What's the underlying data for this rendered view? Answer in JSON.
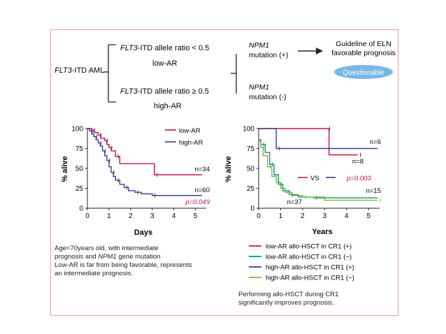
{
  "diagram": {
    "root": {
      "italic": "FLT3",
      "rest": "-ITD AML"
    },
    "branch_low": {
      "italic": "FLT3",
      "rest": "-ITD allele ratio < 0.5",
      "sub": "low-AR"
    },
    "branch_high": {
      "italic": "FLT3",
      "rest": "-ITD allele ratio ≥ 0.5",
      "sub": "high-AR"
    },
    "npm_pos": {
      "italic": "NPM1",
      "sub": "mutation (+)"
    },
    "npm_neg": {
      "italic": "NPM1",
      "sub": "mutation (-)"
    },
    "guideline": [
      "Guideline of ELN",
      "favorable prognosis"
    ],
    "badge": "Questionable"
  },
  "chart_data": [
    {
      "type": "line",
      "xlabel": "Days",
      "ylabel": "% alive",
      "xlim": [
        0,
        5.5
      ],
      "ylim": [
        0,
        100
      ],
      "xticks": [
        0,
        1,
        2,
        3,
        4,
        5
      ],
      "yticks": [
        0,
        25,
        50,
        75,
        100
      ],
      "legend": "top-right",
      "series": [
        {
          "name": "low-AR",
          "color": "#c0144a",
          "x": [
            0,
            0.2,
            0.3,
            0.5,
            0.6,
            0.8,
            0.9,
            1.0,
            1.1,
            1.3,
            1.5,
            3.1,
            5.3
          ],
          "y": [
            100,
            98,
            95,
            92,
            88,
            85,
            80,
            76,
            72,
            65,
            56,
            42,
            42
          ]
        },
        {
          "name": "high-AR",
          "color": "#3a3f8c",
          "x": [
            0,
            0.1,
            0.2,
            0.3,
            0.4,
            0.5,
            0.6,
            0.7,
            0.8,
            0.9,
            1.0,
            1.1,
            1.2,
            1.3,
            1.5,
            1.7,
            1.9,
            2.2,
            2.5,
            3.0,
            5.3
          ],
          "y": [
            100,
            97,
            93,
            90,
            86,
            82,
            78,
            72,
            66,
            60,
            52,
            45,
            40,
            35,
            30,
            26,
            22,
            20,
            18,
            16,
            16
          ]
        }
      ],
      "annotations": [
        "n=34",
        "n=60",
        "p=0.049"
      ]
    },
    {
      "type": "line",
      "xlabel": "Years",
      "ylabel": "% alive",
      "xlim": [
        0,
        5.5
      ],
      "ylim": [
        0,
        100
      ],
      "xticks": [
        0,
        1,
        2,
        3,
        4,
        5
      ],
      "yticks": [
        0,
        25,
        50,
        75,
        100
      ],
      "legend": "bottom",
      "series": [
        {
          "name": "low-AR allo-HSCT in CR1 (+)",
          "color": "#c0144a",
          "x": [
            0,
            3.1,
            3.2,
            4.5
          ],
          "y": [
            100,
            100,
            67,
            67
          ]
        },
        {
          "name": "low-AR allo-HSCT in CR1 (−)",
          "color": "#1d8a86",
          "x": [
            0,
            0.1,
            0.3,
            0.5,
            0.7,
            0.9,
            1.1,
            1.4,
            1.8,
            2.5,
            5.4
          ],
          "y": [
            86,
            80,
            70,
            55,
            42,
            30,
            22,
            17,
            14,
            13,
            13
          ]
        },
        {
          "name": "high-AR allo-HSCT in CR1 (+)",
          "color": "#3a3f8c",
          "x": [
            0,
            0.8,
            5.4
          ],
          "y": [
            100,
            75,
            75
          ]
        },
        {
          "name": "high-AR allo-HSCT in CR1 (−)",
          "color": "#6cc03c",
          "x": [
            0,
            0.1,
            0.2,
            0.4,
            0.6,
            0.8,
            1.0,
            1.2,
            1.5,
            2.0,
            3.0,
            5.4
          ],
          "y": [
            84,
            76,
            66,
            52,
            40,
            32,
            25,
            20,
            16,
            14,
            10,
            10
          ]
        }
      ],
      "annotations": [
        "n=6",
        "n=8",
        "n=15",
        "n=37"
      ],
      "vs": {
        "label": "VS",
        "p": "p=0.003"
      }
    }
  ],
  "left_note": {
    "line1": "Age<70years old, with intermediate",
    "line2_a": "prognosis and ",
    "line2_b": "NPM1",
    "line2_c": " gene mutation",
    "line3": "Low-AR is far from being favorable, represents",
    "line4": "an intermediate prognosis."
  },
  "right_note": {
    "line1": "Performing allo-HSCT during CR1",
    "line2": "significantly improves prognosis."
  },
  "colors": {
    "low": "#c0144a",
    "high": "#3a3f8c",
    "teal": "#1d8a86",
    "green": "#6cc03c",
    "badge": "#7cb7e3",
    "frame": "#e2a3a3"
  }
}
